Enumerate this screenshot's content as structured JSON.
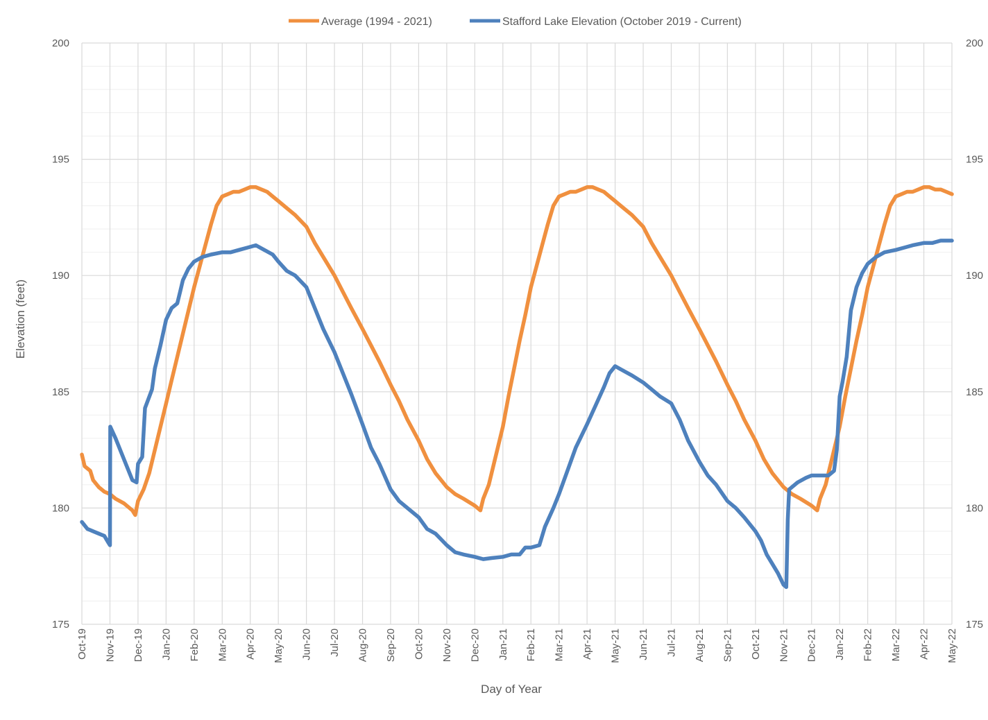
{
  "chart_data": {
    "type": "line",
    "title": "",
    "xlabel": "Day of Year",
    "ylabel": "Elevation (feet)",
    "ylim": [
      175,
      200
    ],
    "yticks": [
      175,
      180,
      185,
      190,
      195,
      200
    ],
    "grid": {
      "major_vertical": true,
      "major_horizontal": true,
      "minor_horizontal": true,
      "minor_step": 1
    },
    "legend_position": "top-center",
    "categories": [
      "Oct-19",
      "Nov-19",
      "Dec-19",
      "Jan-20",
      "Feb-20",
      "Mar-20",
      "Apr-20",
      "May-20",
      "Jun-20",
      "Jul-20",
      "Aug-20",
      "Sep-20",
      "Oct-20",
      "Nov-20",
      "Dec-20",
      "Jan-21",
      "Feb-21",
      "Mar-21",
      "Apr-21",
      "May-21",
      "Jun-21",
      "Jul-21",
      "Aug-21",
      "Sep-21",
      "Oct-21",
      "Nov-21",
      "Dec-21",
      "Jan-22",
      "Feb-22",
      "Mar-22",
      "Apr-22",
      "May-22"
    ],
    "series": [
      {
        "name": "Average (1994 - 2021)",
        "color": "#F0903F",
        "points": [
          [
            0,
            182.3
          ],
          [
            0.1,
            181.8
          ],
          [
            0.3,
            181.6
          ],
          [
            0.4,
            181.2
          ],
          [
            0.6,
            180.9
          ],
          [
            0.8,
            180.7
          ],
          [
            1.0,
            180.6
          ],
          [
            1.2,
            180.4
          ],
          [
            1.5,
            180.2
          ],
          [
            1.8,
            179.9
          ],
          [
            1.9,
            179.7
          ],
          [
            2.0,
            180.3
          ],
          [
            2.2,
            180.8
          ],
          [
            2.4,
            181.5
          ],
          [
            2.6,
            182.5
          ],
          [
            2.8,
            183.5
          ],
          [
            3.0,
            184.5
          ],
          [
            3.2,
            185.5
          ],
          [
            3.4,
            186.5
          ],
          [
            3.6,
            187.5
          ],
          [
            3.8,
            188.5
          ],
          [
            4.0,
            189.5
          ],
          [
            4.2,
            190.4
          ],
          [
            4.4,
            191.3
          ],
          [
            4.6,
            192.2
          ],
          [
            4.8,
            193.0
          ],
          [
            5.0,
            193.4
          ],
          [
            5.2,
            193.5
          ],
          [
            5.4,
            193.6
          ],
          [
            5.6,
            193.6
          ],
          [
            5.8,
            193.7
          ],
          [
            6.0,
            193.8
          ],
          [
            6.2,
            193.8
          ],
          [
            6.4,
            193.7
          ],
          [
            6.6,
            193.6
          ],
          [
            6.8,
            193.4
          ],
          [
            7.0,
            193.2
          ],
          [
            7.3,
            192.9
          ],
          [
            7.6,
            192.6
          ],
          [
            8.0,
            192.1
          ],
          [
            8.3,
            191.4
          ],
          [
            8.6,
            190.8
          ],
          [
            9.0,
            190.0
          ],
          [
            9.3,
            189.3
          ],
          [
            9.6,
            188.6
          ],
          [
            10.0,
            187.7
          ],
          [
            10.3,
            187.0
          ],
          [
            10.6,
            186.3
          ],
          [
            11.0,
            185.3
          ],
          [
            11.3,
            184.6
          ],
          [
            11.6,
            183.8
          ],
          [
            12.0,
            182.9
          ],
          [
            12.3,
            182.1
          ],
          [
            12.6,
            181.5
          ],
          [
            13.0,
            180.9
          ],
          [
            13.3,
            180.6
          ],
          [
            13.6,
            180.4
          ],
          [
            14.0,
            180.1
          ],
          [
            14.2,
            179.9
          ],
          [
            14.3,
            180.4
          ],
          [
            14.5,
            181.0
          ],
          [
            14.7,
            182.0
          ],
          [
            15.0,
            183.5
          ],
          [
            15.2,
            184.8
          ],
          [
            15.4,
            186.0
          ],
          [
            15.6,
            187.2
          ],
          [
            15.8,
            188.3
          ],
          [
            16.0,
            189.5
          ],
          [
            16.2,
            190.4
          ],
          [
            16.4,
            191.3
          ],
          [
            16.6,
            192.2
          ],
          [
            16.8,
            193.0
          ],
          [
            17.0,
            193.4
          ],
          [
            17.2,
            193.5
          ],
          [
            17.4,
            193.6
          ],
          [
            17.6,
            193.6
          ],
          [
            17.8,
            193.7
          ],
          [
            18.0,
            193.8
          ],
          [
            18.2,
            193.8
          ],
          [
            18.4,
            193.7
          ],
          [
            18.6,
            193.6
          ],
          [
            18.8,
            193.4
          ],
          [
            19.0,
            193.2
          ],
          [
            19.3,
            192.9
          ],
          [
            19.6,
            192.6
          ],
          [
            20.0,
            192.1
          ],
          [
            20.3,
            191.4
          ],
          [
            20.6,
            190.8
          ],
          [
            21.0,
            190.0
          ],
          [
            21.3,
            189.3
          ],
          [
            21.6,
            188.6
          ],
          [
            22.0,
            187.7
          ],
          [
            22.3,
            187.0
          ],
          [
            22.6,
            186.3
          ],
          [
            23.0,
            185.3
          ],
          [
            23.3,
            184.6
          ],
          [
            23.6,
            183.8
          ],
          [
            24.0,
            182.9
          ],
          [
            24.3,
            182.1
          ],
          [
            24.6,
            181.5
          ],
          [
            25.0,
            180.9
          ],
          [
            25.3,
            180.6
          ],
          [
            25.6,
            180.4
          ],
          [
            26.0,
            180.1
          ],
          [
            26.2,
            179.9
          ],
          [
            26.3,
            180.4
          ],
          [
            26.5,
            181.0
          ],
          [
            26.7,
            182.0
          ],
          [
            27.0,
            183.5
          ],
          [
            27.2,
            184.8
          ],
          [
            27.4,
            186.0
          ],
          [
            27.6,
            187.2
          ],
          [
            27.8,
            188.3
          ],
          [
            28.0,
            189.5
          ],
          [
            28.2,
            190.4
          ],
          [
            28.4,
            191.3
          ],
          [
            28.6,
            192.2
          ],
          [
            28.8,
            193.0
          ],
          [
            29.0,
            193.4
          ],
          [
            29.2,
            193.5
          ],
          [
            29.4,
            193.6
          ],
          [
            29.6,
            193.6
          ],
          [
            29.8,
            193.7
          ],
          [
            30.0,
            193.8
          ],
          [
            30.2,
            193.8
          ],
          [
            30.4,
            193.7
          ],
          [
            30.6,
            193.7
          ],
          [
            30.8,
            193.6
          ],
          [
            31.0,
            193.5
          ]
        ]
      },
      {
        "name": "Stafford Lake Elevation (October 2019 - Current)",
        "color": "#4E81BD",
        "points": [
          [
            0,
            179.4
          ],
          [
            0.2,
            179.1
          ],
          [
            0.4,
            179.0
          ],
          [
            0.6,
            178.9
          ],
          [
            0.8,
            178.8
          ],
          [
            0.95,
            178.5
          ],
          [
            1.0,
            178.4
          ],
          [
            1.01,
            183.5
          ],
          [
            1.2,
            183.0
          ],
          [
            1.4,
            182.4
          ],
          [
            1.6,
            181.8
          ],
          [
            1.8,
            181.2
          ],
          [
            1.95,
            181.1
          ],
          [
            2.0,
            181.9
          ],
          [
            2.15,
            182.2
          ],
          [
            2.25,
            184.3
          ],
          [
            2.5,
            185.1
          ],
          [
            2.6,
            186.0
          ],
          [
            2.8,
            187.0
          ],
          [
            3.0,
            188.1
          ],
          [
            3.2,
            188.6
          ],
          [
            3.4,
            188.8
          ],
          [
            3.5,
            189.3
          ],
          [
            3.6,
            189.8
          ],
          [
            3.8,
            190.3
          ],
          [
            4.0,
            190.6
          ],
          [
            4.3,
            190.8
          ],
          [
            4.6,
            190.9
          ],
          [
            5.0,
            191.0
          ],
          [
            5.3,
            191.0
          ],
          [
            5.6,
            191.1
          ],
          [
            5.9,
            191.2
          ],
          [
            6.2,
            191.3
          ],
          [
            6.5,
            191.1
          ],
          [
            6.8,
            190.9
          ],
          [
            7.0,
            190.6
          ],
          [
            7.3,
            190.2
          ],
          [
            7.6,
            190.0
          ],
          [
            8.0,
            189.5
          ],
          [
            8.3,
            188.6
          ],
          [
            8.6,
            187.7
          ],
          [
            8.8,
            187.2
          ],
          [
            9.0,
            186.7
          ],
          [
            9.3,
            185.8
          ],
          [
            9.6,
            184.9
          ],
          [
            10.0,
            183.6
          ],
          [
            10.3,
            182.6
          ],
          [
            10.6,
            181.9
          ],
          [
            11.0,
            180.8
          ],
          [
            11.3,
            180.3
          ],
          [
            11.6,
            180.0
          ],
          [
            12.0,
            179.6
          ],
          [
            12.3,
            179.1
          ],
          [
            12.6,
            178.9
          ],
          [
            13.0,
            178.4
          ],
          [
            13.3,
            178.1
          ],
          [
            13.6,
            178.0
          ],
          [
            14.0,
            177.9
          ],
          [
            14.3,
            177.8
          ],
          [
            14.6,
            177.85
          ],
          [
            15.0,
            177.9
          ],
          [
            15.3,
            178.0
          ],
          [
            15.6,
            178.0
          ],
          [
            15.8,
            178.3
          ],
          [
            16.0,
            178.3
          ],
          [
            16.3,
            178.4
          ],
          [
            16.5,
            179.2
          ],
          [
            16.8,
            180.0
          ],
          [
            17.0,
            180.6
          ],
          [
            17.3,
            181.6
          ],
          [
            17.6,
            182.6
          ],
          [
            18.0,
            183.6
          ],
          [
            18.3,
            184.4
          ],
          [
            18.6,
            185.2
          ],
          [
            18.8,
            185.8
          ],
          [
            19.0,
            186.1
          ],
          [
            19.3,
            185.9
          ],
          [
            19.6,
            185.7
          ],
          [
            20.0,
            185.4
          ],
          [
            20.3,
            185.1
          ],
          [
            20.6,
            184.8
          ],
          [
            21.0,
            184.5
          ],
          [
            21.3,
            183.8
          ],
          [
            21.6,
            182.9
          ],
          [
            22.0,
            182.0
          ],
          [
            22.3,
            181.4
          ],
          [
            22.6,
            181.0
          ],
          [
            23.0,
            180.3
          ],
          [
            23.3,
            180.0
          ],
          [
            23.6,
            179.6
          ],
          [
            24.0,
            179.0
          ],
          [
            24.2,
            178.6
          ],
          [
            24.4,
            178.0
          ],
          [
            24.6,
            177.6
          ],
          [
            24.8,
            177.2
          ],
          [
            25.0,
            176.7
          ],
          [
            25.1,
            176.6
          ],
          [
            25.15,
            179.5
          ],
          [
            25.2,
            180.8
          ],
          [
            25.5,
            181.1
          ],
          [
            25.8,
            181.3
          ],
          [
            26.0,
            181.4
          ],
          [
            26.3,
            181.4
          ],
          [
            26.6,
            181.4
          ],
          [
            26.8,
            181.6
          ],
          [
            26.9,
            182.5
          ],
          [
            27.0,
            184.8
          ],
          [
            27.1,
            185.4
          ],
          [
            27.25,
            186.5
          ],
          [
            27.4,
            188.5
          ],
          [
            27.6,
            189.5
          ],
          [
            27.8,
            190.1
          ],
          [
            28.0,
            190.5
          ],
          [
            28.3,
            190.8
          ],
          [
            28.6,
            191.0
          ],
          [
            29.0,
            191.1
          ],
          [
            29.3,
            191.2
          ],
          [
            29.6,
            191.3
          ],
          [
            30.0,
            191.4
          ],
          [
            30.3,
            191.4
          ],
          [
            30.6,
            191.5
          ],
          [
            31.0,
            191.5
          ]
        ]
      }
    ]
  }
}
